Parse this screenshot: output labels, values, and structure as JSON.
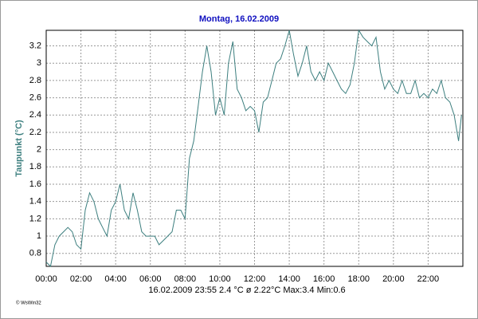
{
  "chart_data": {
    "type": "line",
    "title": "Montag, 16.02.2009",
    "y_label": "Taupunkt (°C)",
    "footer": "16.02.2009  23:55   2.4 °C   ø 2.22°C  Max:3.4  Min:0.6",
    "credit": "© WsWin32",
    "xlim": [
      0,
      24
    ],
    "ylim": [
      0.65,
      3.38
    ],
    "grid": true,
    "xticks": [
      {
        "value": 0,
        "label": "00:00"
      },
      {
        "value": 2,
        "label": "02:00"
      },
      {
        "value": 4,
        "label": "04:00"
      },
      {
        "value": 6,
        "label": "06:00"
      },
      {
        "value": 8,
        "label": "08:00"
      },
      {
        "value": 10,
        "label": "10:00"
      },
      {
        "value": 12,
        "label": "12:00"
      },
      {
        "value": 14,
        "label": "14:00"
      },
      {
        "value": 16,
        "label": "16:00"
      },
      {
        "value": 18,
        "label": "18:00"
      },
      {
        "value": 20,
        "label": "20:00"
      },
      {
        "value": 22,
        "label": "22:00"
      }
    ],
    "yticks": [
      0.8,
      1,
      1.2,
      1.4,
      1.6,
      1.8,
      2,
      2.2,
      2.4,
      2.6,
      2.8,
      3,
      3.2
    ],
    "x": [
      0,
      0.25,
      0.5,
      0.75,
      1,
      1.25,
      1.5,
      1.75,
      2,
      2.25,
      2.5,
      2.75,
      3,
      3.25,
      3.5,
      3.75,
      4,
      4.25,
      4.5,
      4.75,
      5,
      5.25,
      5.5,
      5.75,
      6,
      6.25,
      6.5,
      6.75,
      7,
      7.25,
      7.5,
      7.75,
      8,
      8.25,
      8.5,
      8.75,
      9,
      9.25,
      9.5,
      9.75,
      10,
      10.25,
      10.5,
      10.75,
      11,
      11.25,
      11.5,
      11.75,
      12,
      12.25,
      12.5,
      12.75,
      13,
      13.25,
      13.5,
      13.75,
      14,
      14.25,
      14.5,
      14.75,
      15,
      15.25,
      15.5,
      15.75,
      16,
      16.25,
      16.5,
      16.75,
      17,
      17.25,
      17.5,
      17.75,
      18,
      18.25,
      18.5,
      18.75,
      19,
      19.25,
      19.5,
      19.75,
      20,
      20.25,
      20.5,
      20.75,
      21,
      21.25,
      21.5,
      21.75,
      22,
      22.25,
      22.5,
      22.75,
      23,
      23.25,
      23.5,
      23.75,
      23.92
    ],
    "series": [
      {
        "name": "Taupunkt",
        "color": "#3d7f7f",
        "values": [
          0.7,
          0.65,
          0.9,
          1.0,
          1.05,
          1.1,
          1.05,
          0.9,
          0.85,
          1.3,
          1.5,
          1.4,
          1.2,
          1.1,
          1.0,
          1.3,
          1.4,
          1.6,
          1.3,
          1.2,
          1.5,
          1.3,
          1.05,
          1.0,
          1.0,
          1.0,
          0.9,
          0.95,
          1.0,
          1.05,
          1.3,
          1.3,
          1.2,
          1.9,
          2.1,
          2.5,
          2.9,
          3.2,
          2.9,
          2.4,
          2.6,
          2.4,
          3.0,
          3.25,
          2.7,
          2.6,
          2.45,
          2.5,
          2.45,
          2.2,
          2.55,
          2.6,
          2.8,
          3.0,
          3.05,
          3.2,
          3.38,
          3.1,
          2.85,
          3.0,
          3.2,
          2.9,
          2.8,
          2.9,
          2.8,
          3.0,
          2.9,
          2.8,
          2.7,
          2.65,
          2.75,
          3.0,
          3.38,
          3.3,
          3.25,
          3.2,
          3.3,
          2.9,
          2.7,
          2.8,
          2.7,
          2.65,
          2.8,
          2.65,
          2.65,
          2.8,
          2.6,
          2.65,
          2.6,
          2.7,
          2.65,
          2.8,
          2.6,
          2.55,
          2.4,
          2.1,
          2.4
        ]
      }
    ]
  }
}
